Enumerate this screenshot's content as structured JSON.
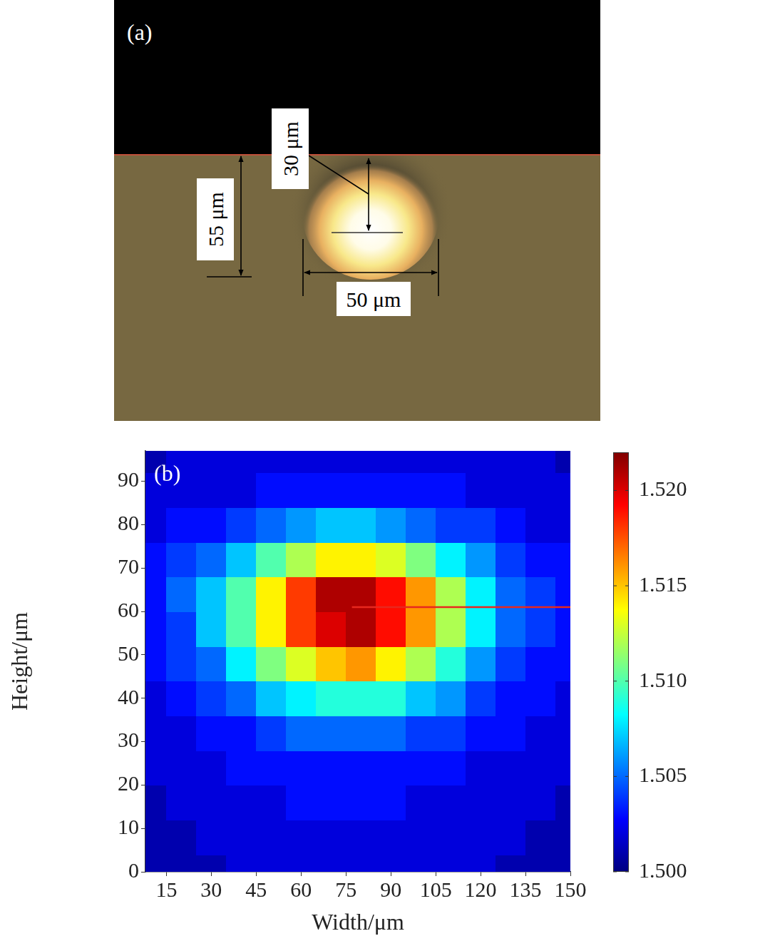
{
  "panel_a": {
    "label": "(a)",
    "depth_label": "30 μm",
    "height_label": "55 μm",
    "width_label": "50 μm"
  },
  "chart_data": {
    "type": "heatmap",
    "title": "(b)",
    "x_label": "Width/μm",
    "y_label": "Height/μm",
    "x": [
      10,
      20,
      30,
      40,
      50,
      60,
      70,
      80,
      90,
      100,
      110,
      120,
      130,
      140,
      150
    ],
    "y": [
      0,
      8,
      16,
      24,
      32,
      40,
      48,
      56,
      64,
      72,
      80,
      88,
      96
    ],
    "z": [
      [
        1.501,
        1.501,
        1.501,
        1.502,
        1.502,
        1.502,
        1.502,
        1.502,
        1.502,
        1.502,
        1.502,
        1.502,
        1.501,
        1.501,
        1.501
      ],
      [
        1.501,
        1.501,
        1.502,
        1.502,
        1.502,
        1.502,
        1.502,
        1.502,
        1.502,
        1.502,
        1.502,
        1.502,
        1.502,
        1.501,
        1.501
      ],
      [
        1.501,
        1.502,
        1.502,
        1.502,
        1.502,
        1.503,
        1.503,
        1.503,
        1.503,
        1.502,
        1.502,
        1.502,
        1.502,
        1.502,
        1.501
      ],
      [
        1.502,
        1.502,
        1.502,
        1.503,
        1.503,
        1.503,
        1.503,
        1.503,
        1.503,
        1.503,
        1.503,
        1.502,
        1.502,
        1.502,
        1.502
      ],
      [
        1.502,
        1.502,
        1.503,
        1.503,
        1.504,
        1.505,
        1.505,
        1.505,
        1.505,
        1.504,
        1.504,
        1.503,
        1.503,
        1.502,
        1.502
      ],
      [
        1.502,
        1.503,
        1.504,
        1.505,
        1.507,
        1.508,
        1.509,
        1.509,
        1.509,
        1.507,
        1.506,
        1.504,
        1.503,
        1.503,
        1.502
      ],
      [
        1.503,
        1.504,
        1.505,
        1.508,
        1.511,
        1.513,
        1.515,
        1.516,
        1.514,
        1.512,
        1.509,
        1.506,
        1.504,
        1.503,
        1.503
      ],
      [
        1.503,
        1.504,
        1.507,
        1.51,
        1.514,
        1.518,
        1.52,
        1.521,
        1.519,
        1.516,
        1.512,
        1.508,
        1.505,
        1.504,
        1.503
      ],
      [
        1.503,
        1.505,
        1.507,
        1.51,
        1.514,
        1.518,
        1.521,
        1.521,
        1.519,
        1.516,
        1.512,
        1.508,
        1.505,
        1.504,
        1.503
      ],
      [
        1.503,
        1.504,
        1.505,
        1.507,
        1.51,
        1.512,
        1.514,
        1.514,
        1.513,
        1.511,
        1.508,
        1.506,
        1.504,
        1.503,
        1.503
      ],
      [
        1.502,
        1.503,
        1.503,
        1.504,
        1.505,
        1.506,
        1.507,
        1.507,
        1.506,
        1.505,
        1.504,
        1.504,
        1.503,
        1.502,
        1.502
      ],
      [
        1.502,
        1.502,
        1.502,
        1.502,
        1.503,
        1.503,
        1.503,
        1.503,
        1.503,
        1.503,
        1.503,
        1.502,
        1.502,
        1.502,
        1.502
      ],
      [
        1.501,
        1.502,
        1.502,
        1.502,
        1.502,
        1.502,
        1.502,
        1.502,
        1.502,
        1.502,
        1.502,
        1.502,
        1.502,
        1.502,
        1.501
      ]
    ],
    "xlim": [
      8,
      150
    ],
    "ylim": [
      0,
      97
    ],
    "xticks": [
      15,
      30,
      45,
      60,
      75,
      90,
      105,
      120,
      135,
      150
    ],
    "yticks": [
      0,
      10,
      20,
      30,
      40,
      50,
      60,
      70,
      80,
      90
    ],
    "colorbar": {
      "range": [
        1.5,
        1.522
      ],
      "ticks": [
        {
          "value": 1.5,
          "label": "1.500"
        },
        {
          "value": 1.505,
          "label": "1.505"
        },
        {
          "value": 1.51,
          "label": "1.510"
        },
        {
          "value": 1.515,
          "label": "1.515"
        },
        {
          "value": 1.52,
          "label": "1.520"
        }
      ]
    },
    "line": {
      "x": [
        77,
        150
      ],
      "y": [
        61,
        61
      ],
      "color": "#e8281e"
    },
    "grid": false
  }
}
